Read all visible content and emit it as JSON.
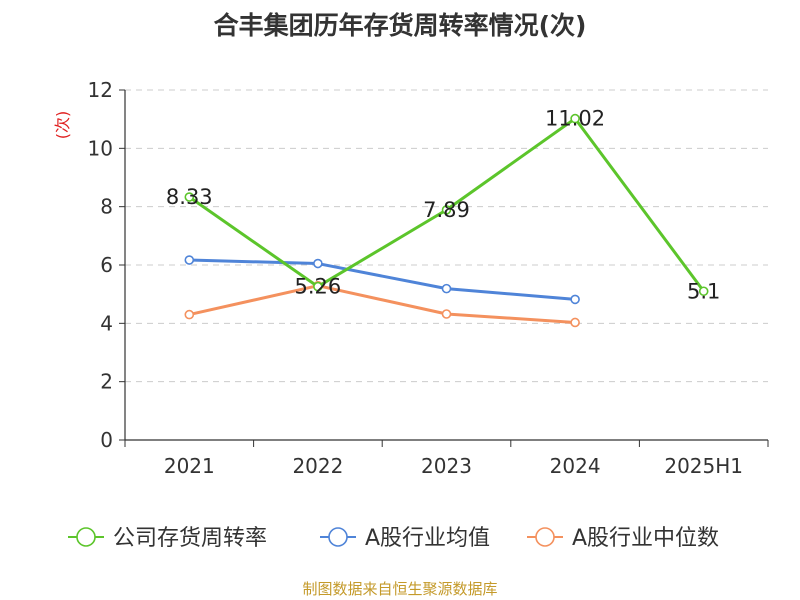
{
  "chart_data": {
    "type": "line",
    "title": "合丰集团历年存货周转率情况(次)",
    "ylabel": "(次)",
    "xlabel": "",
    "categories": [
      "2021",
      "2022",
      "2023",
      "2024",
      "2025H1"
    ],
    "ylim": [
      0,
      12
    ],
    "yticks": [
      0,
      2,
      4,
      6,
      8,
      10,
      12
    ],
    "grid": "horizontal dashed",
    "legend_position": "bottom",
    "series": [
      {
        "name": "公司存货周转率",
        "values": [
          8.33,
          5.26,
          7.89,
          11.02,
          5.1
        ],
        "labels": [
          "8.33",
          "5.26",
          "7.89",
          "11.02",
          "5.1"
        ],
        "color": "#5cc52b"
      },
      {
        "name": "A股行业均值",
        "values": [
          6.17,
          6.05,
          5.19,
          4.82,
          null
        ],
        "color": "#4f84d8"
      },
      {
        "name": "A股行业中位数",
        "values": [
          4.3,
          5.29,
          4.32,
          4.03,
          null
        ],
        "color": "#f4915e"
      }
    ]
  },
  "footer": {
    "source": "制图数据来自恒生聚源数据库"
  },
  "colors": {
    "axis": "#333333",
    "grid": "#cccccc",
    "ylabel": "#e02020"
  }
}
